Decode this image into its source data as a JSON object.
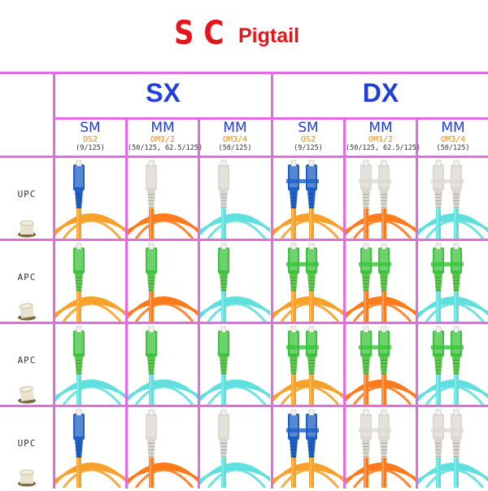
{
  "title": {
    "sc": "SC",
    "pigtail": "Pigtail"
  },
  "groups": {
    "sx": "SX",
    "dx": "DX"
  },
  "columns": [
    {
      "mode": "SM",
      "grade": "OS2",
      "spec": "(9/125)",
      "cable": "#f6a12a",
      "body": "#1e5fc4",
      "boot": "#1e5fc4"
    },
    {
      "mode": "MM",
      "grade": "OM1/2",
      "spec": "(50/125, 62.5/125)",
      "cable": "#ff7a1a",
      "body": "#ddd8d2",
      "boot": "#d9d4cc"
    },
    {
      "mode": "MM",
      "grade": "OM3/4",
      "spec": "(50/125)",
      "cable": "#5fe0de",
      "body": "#ddd8d2",
      "boot": "#d9d4cc"
    },
    {
      "mode": "SM",
      "grade": "OS2",
      "spec": "(9/125)",
      "cable": "#f6a12a",
      "body": "#1e5fc4",
      "boot": "#1e5fc4"
    },
    {
      "mode": "MM",
      "grade": "OM1/2",
      "spec": "(50/125, 62.5/125)",
      "cable": "#ff7a1a",
      "body": "#ddd8d2",
      "boot": "#d9d4cc"
    },
    {
      "mode": "MM",
      "grade": "OM3/4",
      "spec": "(50/125)",
      "cable": "#5fe0de",
      "body": "#ddd8d2",
      "boot": "#d9d4cc"
    }
  ],
  "rows": [
    {
      "polish": "UPC",
      "green": false,
      "cables": [
        "#f6a12a",
        "#ff7a1a",
        "#5fe0de",
        "#f6a12a",
        "#ff7a1a",
        "#5fe0de"
      ]
    },
    {
      "polish": "APC",
      "green": true,
      "cables": [
        "#f6a12a",
        "#ff7a1a",
        "#5fe0de",
        "#f6a12a",
        "#ff7a1a",
        "#5fe0de"
      ]
    },
    {
      "polish": "APC",
      "green": true,
      "cables": [
        "#5fe0de",
        "#5fe0de",
        "#5fe0de",
        "#f6a12a",
        "#ff7a1a",
        "#5fe0de"
      ]
    },
    {
      "polish": "UPC",
      "green": false,
      "cables": [
        "#f6a12a",
        "#ff7a1a",
        "#5fe0de",
        "#f6a12a",
        "#ff7a1a",
        "#5fe0de"
      ]
    }
  ],
  "colors": {
    "grid": "#e56ce0",
    "heading": "#1f3fd6",
    "title": "#e8141c",
    "apc_green": "#3cc23c"
  }
}
